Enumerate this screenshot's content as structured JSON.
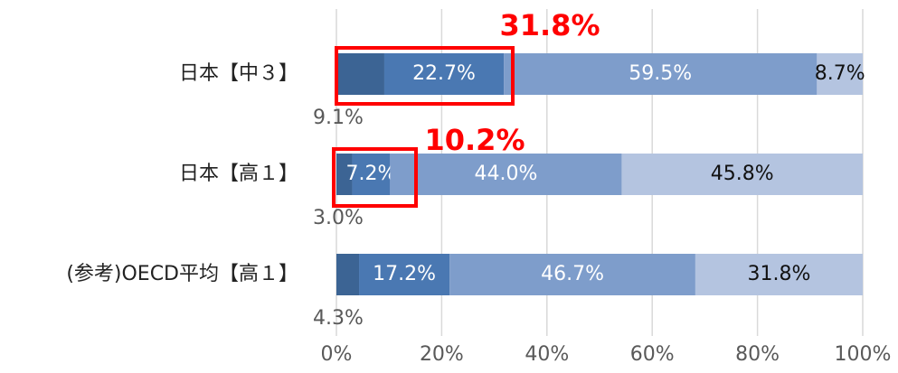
{
  "chart_data": {
    "type": "stacked_barh",
    "categories": [
      "日本【中３】",
      "日本【高１】",
      "(参考)OECD平均【高１】"
    ],
    "series": [
      {
        "color": "#3c6494",
        "values": [
          9.1,
          3.0,
          4.3
        ],
        "value_labels": [
          "9.1%",
          "3.0%",
          "4.3%"
        ]
      },
      {
        "color": "#4a78b2",
        "values": [
          22.7,
          7.2,
          17.2
        ],
        "value_labels": [
          "22.7%",
          "7.2%",
          "17.2%"
        ]
      },
      {
        "color": "#7e9dcb",
        "values": [
          59.5,
          44.0,
          46.7
        ],
        "value_labels": [
          "59.5%",
          "44.0%",
          "46.7%"
        ]
      },
      {
        "color": "#b4c4e0",
        "values": [
          8.7,
          45.8,
          31.8
        ],
        "value_labels": [
          "8.7%",
          "45.8%",
          "31.8%"
        ]
      }
    ],
    "xlim": [
      0,
      100
    ],
    "xticks": [
      {
        "value": 0,
        "label": "0%"
      },
      {
        "value": 20,
        "label": "20%"
      },
      {
        "value": 40,
        "label": "40%"
      },
      {
        "value": 60,
        "label": "60%"
      },
      {
        "value": 80,
        "label": "80%"
      },
      {
        "value": 100,
        "label": "100%"
      }
    ],
    "grid": true,
    "annotations": [
      {
        "text": "31.8%",
        "color": "#ff0000"
      },
      {
        "text": "10.2%",
        "color": "#ff0000"
      }
    ]
  }
}
